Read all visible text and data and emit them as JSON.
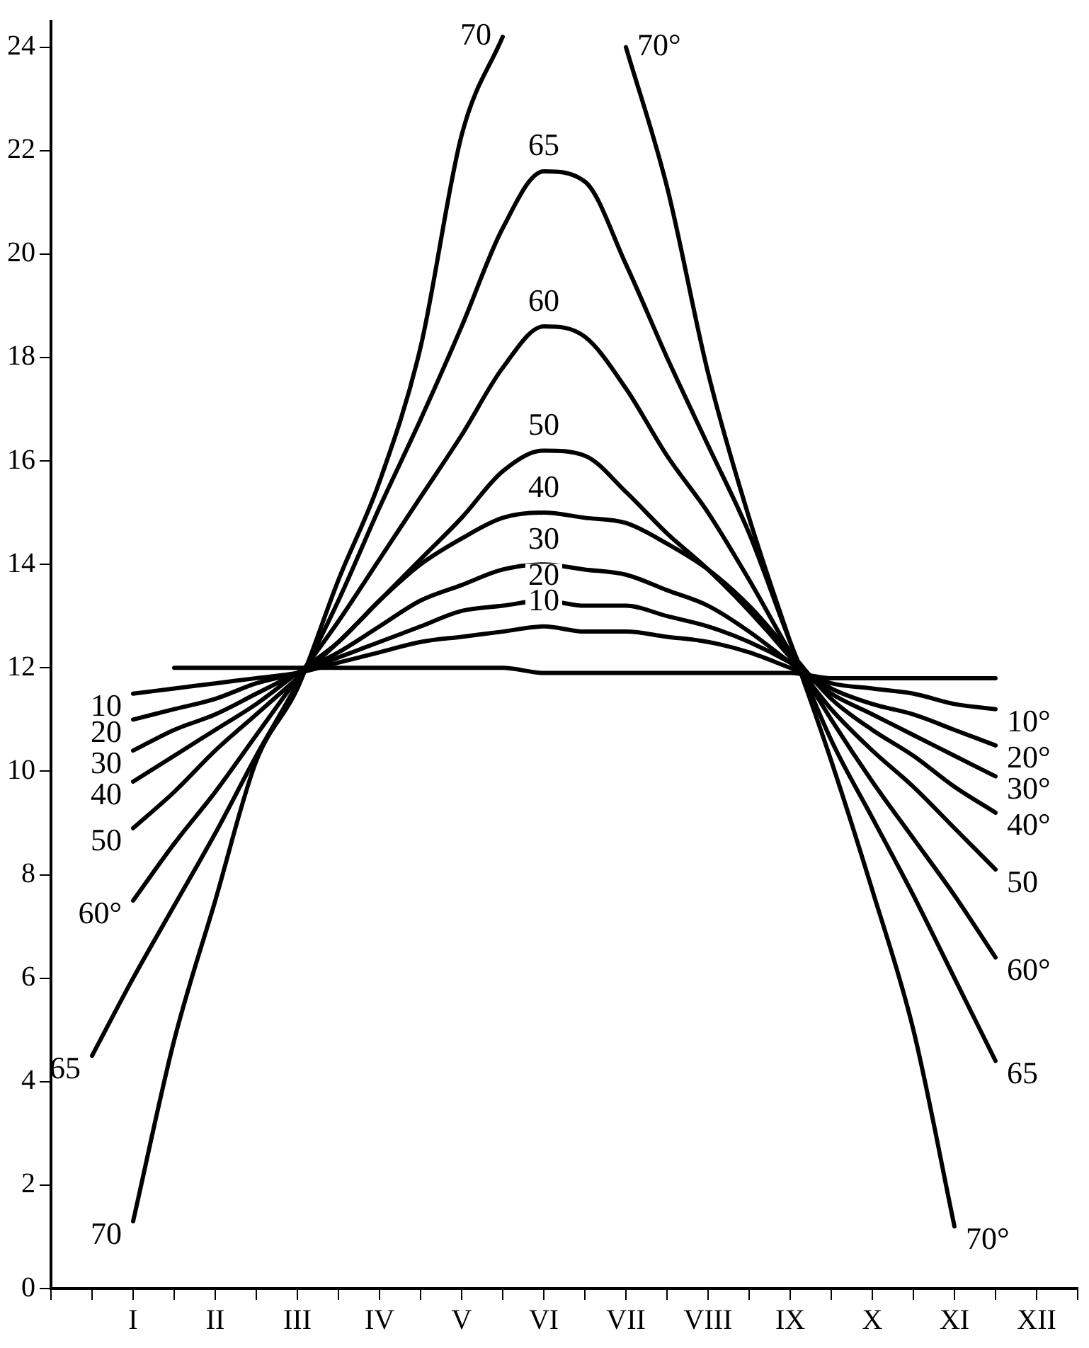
{
  "chart_data": {
    "type": "line",
    "categories": [
      null,
      null,
      "I",
      null,
      "II",
      null,
      "III",
      null,
      "IV",
      null,
      "V",
      null,
      "VI",
      null,
      "VII",
      null,
      "VIII",
      null,
      "IX",
      null,
      "X",
      null,
      "XI",
      null,
      "XII",
      null
    ],
    "ylim": [
      0,
      24.5
    ],
    "yticks": [
      0,
      2,
      4,
      6,
      8,
      10,
      12,
      14,
      16,
      18,
      20,
      22,
      24
    ],
    "grid": false,
    "legend": false,
    "marker": "none",
    "line_style": "solid",
    "series": [
      {
        "color": "#000000",
        "values": [
          null,
          null,
          null,
          12,
          12,
          12,
          12,
          12,
          12,
          12,
          12,
          12,
          11.9,
          11.9,
          11.9,
          11.9,
          11.9,
          11.9,
          11.9,
          11.8,
          11.8,
          11.8,
          11.8,
          11.8,
          null,
          null
        ]
      },
      {
        "name": "10°",
        "color": "#000000",
        "values": [
          null,
          null,
          11.5,
          11.6,
          11.7,
          11.8,
          11.9,
          12.1,
          12.3,
          12.5,
          12.6,
          12.7,
          12.8,
          12.7,
          12.7,
          12.6,
          12.5,
          12.3,
          12.0,
          11.7,
          11.6,
          11.5,
          11.3,
          11.2,
          null,
          null
        ]
      },
      {
        "name": "20°",
        "color": "#000000",
        "values": [
          null,
          null,
          11.0,
          11.2,
          11.4,
          11.7,
          11.9,
          12.2,
          12.5,
          12.8,
          13.1,
          13.2,
          13.3,
          13.2,
          13.2,
          13.0,
          12.8,
          12.5,
          12.1,
          11.6,
          11.3,
          11.1,
          10.8,
          10.5,
          null,
          null
        ]
      },
      {
        "name": "30°",
        "color": "#000000",
        "values": [
          null,
          null,
          10.4,
          10.8,
          11.1,
          11.5,
          11.9,
          12.3,
          12.8,
          13.3,
          13.6,
          13.9,
          14.0,
          13.9,
          13.8,
          13.5,
          13.2,
          12.7,
          12.1,
          11.5,
          11.1,
          10.7,
          10.3,
          9.9,
          null,
          null
        ]
      },
      {
        "name": "40°",
        "color": "#000000",
        "values": [
          null,
          null,
          9.8,
          10.3,
          10.8,
          11.3,
          11.9,
          12.5,
          13.3,
          14.0,
          14.5,
          14.9,
          15.0,
          14.9,
          14.8,
          14.4,
          13.9,
          13.2,
          12.3,
          11.4,
          10.8,
          10.3,
          9.7,
          9.2,
          null,
          null
        ]
      },
      {
        "name": "50",
        "color": "#000000",
        "values": [
          null,
          null,
          8.9,
          9.6,
          10.4,
          11.1,
          11.8,
          12.5,
          13.3,
          14.1,
          14.9,
          15.8,
          16.2,
          16.1,
          15.4,
          14.6,
          13.9,
          13.1,
          12.2,
          11.2,
          10.4,
          9.7,
          8.9,
          8.1,
          null,
          null
        ]
      },
      {
        "name": "60°",
        "color": "#000000",
        "values": [
          null,
          null,
          7.5,
          8.6,
          9.6,
          10.7,
          11.8,
          12.9,
          14.1,
          15.3,
          16.5,
          17.8,
          18.6,
          18.4,
          17.4,
          16.1,
          15.0,
          13.7,
          12.3,
          11.0,
          9.8,
          8.7,
          7.6,
          6.4,
          null,
          null
        ]
      },
      {
        "name": "65",
        "color": "#000000",
        "values": [
          null,
          4.5,
          6.0,
          7.4,
          8.8,
          10.3,
          11.7,
          13.3,
          15.1,
          16.8,
          18.6,
          20.5,
          21.6,
          21.4,
          19.8,
          18.0,
          16.3,
          14.6,
          12.5,
          10.6,
          9.1,
          7.6,
          6.0,
          4.4,
          null,
          null
        ]
      },
      {
        "name": "70",
        "color": "#000000",
        "values": [
          null,
          null,
          1.3,
          4.8,
          7.5,
          10.2,
          11.6,
          13.7,
          15.6,
          18.2,
          22.3,
          24.2,
          null,
          null,
          null,
          null,
          null,
          null,
          null,
          null,
          null,
          null,
          null,
          null,
          null,
          null
        ]
      },
      {
        "name": "70°",
        "color": "#000000",
        "values": [
          null,
          null,
          null,
          null,
          null,
          null,
          null,
          null,
          null,
          null,
          null,
          null,
          null,
          null,
          24.0,
          21.3,
          17.7,
          14.9,
          12.5,
          10.2,
          7.7,
          5.0,
          1.2,
          null,
          null,
          null
        ]
      }
    ],
    "annotations": [
      "10",
      "20",
      "30",
      "40",
      "50",
      "60°",
      "65",
      "70",
      "70°",
      "10",
      "20",
      "30",
      "40",
      "50",
      "60",
      "65"
    ]
  }
}
